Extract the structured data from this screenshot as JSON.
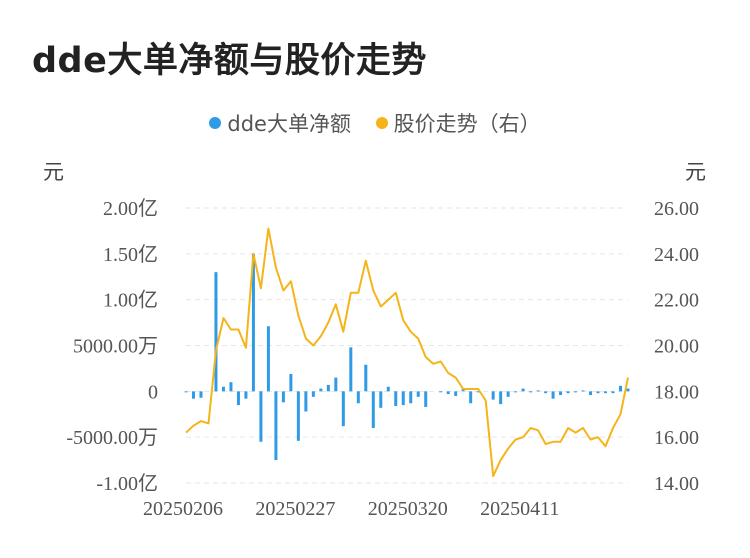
{
  "title": "dde大单净额与股价走势",
  "legend": [
    {
      "label": "dde大单净额",
      "color": "#2f9be6"
    },
    {
      "label": "股价走势（右）",
      "color": "#f5b41a"
    }
  ],
  "axis_units": {
    "left": "元",
    "right": "元"
  },
  "chart_data": {
    "type": "bar",
    "title": "dde大单净额与股价走势",
    "x_tick_labels": [
      "20250206",
      "20250227",
      "20250320",
      "20250411"
    ],
    "x_tick_index": [
      0,
      15,
      30,
      45
    ],
    "left_axis": {
      "ylim": [
        -10000,
        20000
      ],
      "ticks": [
        20000,
        15000,
        10000,
        5000,
        0,
        -5000,
        -10000
      ],
      "tick_labels": [
        "2.00亿",
        "1.50亿",
        "1.00亿",
        "5000.00万",
        "0",
        "-5000.00万",
        "-1.00亿"
      ]
    },
    "right_axis": {
      "ylim": [
        14,
        26
      ],
      "ticks": [
        26,
        24,
        22,
        20,
        18,
        16,
        14
      ],
      "tick_labels": [
        "26.00",
        "24.00",
        "22.00",
        "20.00",
        "18.00",
        "16.00",
        "14.00"
      ]
    },
    "grid": true,
    "legend_position": "top-center",
    "series": [
      {
        "name": "dde大单净额",
        "type": "bar",
        "axis": "left",
        "color": "#2f9be6",
        "values": [
          -100,
          -800,
          -700,
          0,
          13000,
          500,
          1000,
          -1500,
          -800,
          15000,
          -5500,
          7100,
          -7500,
          -1200,
          1900,
          -5400,
          -2200,
          -600,
          300,
          700,
          1500,
          -3800,
          4800,
          -1300,
          2900,
          -4000,
          -1800,
          500,
          -1600,
          -1500,
          -1300,
          -600,
          -1700,
          0,
          -100,
          -300,
          -500,
          300,
          -1300,
          -100,
          0,
          -900,
          -1400,
          -600,
          -100,
          300,
          -100,
          100,
          -200,
          -800,
          -400,
          -200,
          -100,
          100,
          -400,
          -200,
          -200,
          -200,
          600,
          300
        ]
      },
      {
        "name": "股价走势（右）",
        "type": "line",
        "axis": "right",
        "color": "#f5b41a",
        "values": [
          16.2,
          16.5,
          16.7,
          16.6,
          19.8,
          21.2,
          20.7,
          20.7,
          19.9,
          24.0,
          22.5,
          25.1,
          23.4,
          22.4,
          22.8,
          21.3,
          20.3,
          20.0,
          20.4,
          21.0,
          21.8,
          20.6,
          22.3,
          22.3,
          23.7,
          22.4,
          21.7,
          22.0,
          22.3,
          21.1,
          20.6,
          20.3,
          19.5,
          19.2,
          19.3,
          18.8,
          18.6,
          18.1,
          18.1,
          18.1,
          17.6,
          14.3,
          15.0,
          15.5,
          15.9,
          16.0,
          16.4,
          16.3,
          15.7,
          15.8,
          15.8,
          16.4,
          16.2,
          16.4,
          15.9,
          16.0,
          15.6,
          16.4,
          17.0,
          18.6
        ]
      }
    ]
  }
}
